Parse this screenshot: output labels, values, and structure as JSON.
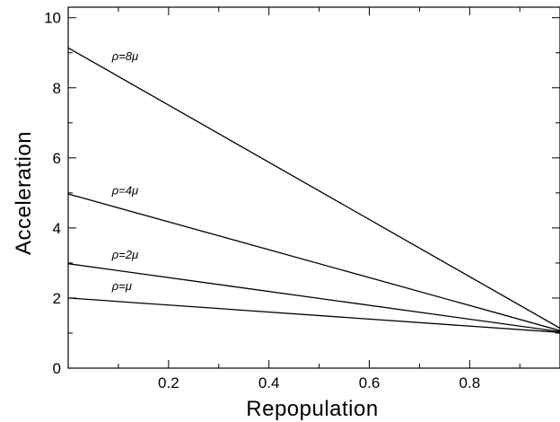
{
  "chart_data": {
    "type": "line",
    "title": "",
    "xlabel": "Repopulation",
    "ylabel": "Acceleration",
    "xlim": [
      0.0,
      0.98
    ],
    "ylim": [
      0,
      10.3
    ],
    "x_ticks": [
      "0.2",
      "0.4",
      "0.6",
      "0.8"
    ],
    "y_ticks": [
      "0",
      "2",
      "4",
      "6",
      "8",
      "10"
    ],
    "grid": false,
    "legend": "none",
    "line_color": "#000000",
    "series": [
      {
        "name": "ρ=8μ",
        "x": [
          0.0,
          0.98
        ],
        "y": [
          9.14,
          1.14
        ]
      },
      {
        "name": "ρ=4μ",
        "x": [
          0.0,
          0.98
        ],
        "y": [
          4.97,
          1.07
        ]
      },
      {
        "name": "ρ=2μ",
        "x": [
          0.0,
          0.98
        ],
        "y": [
          2.98,
          1.04
        ]
      },
      {
        "name": "ρ=μ",
        "x": [
          0.0,
          0.98
        ],
        "y": [
          2.0,
          1.02
        ]
      }
    ]
  }
}
